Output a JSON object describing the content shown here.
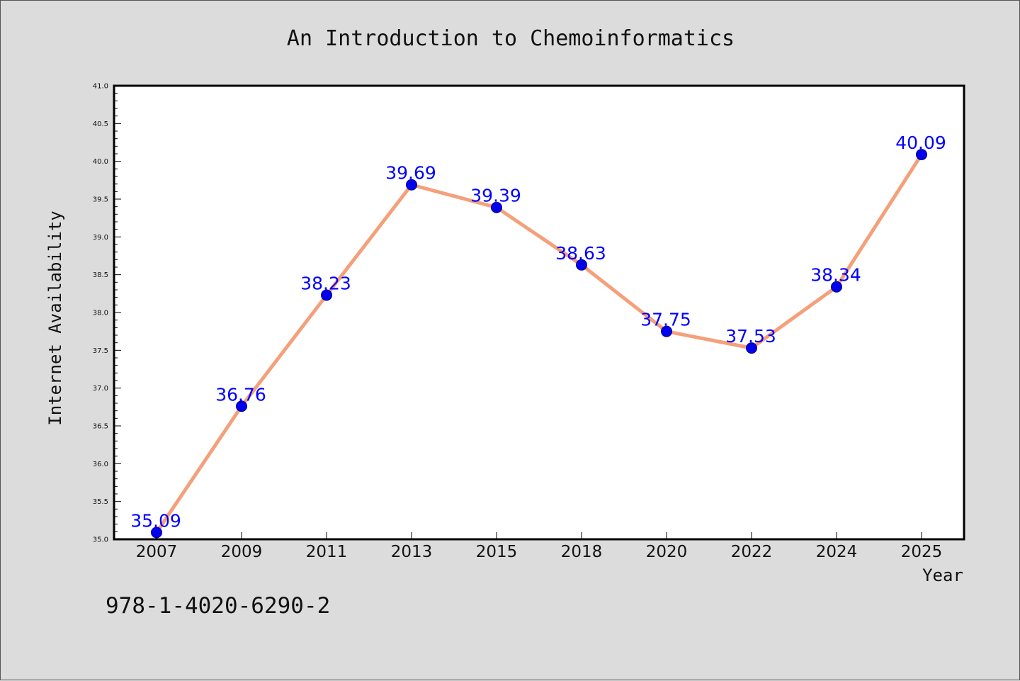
{
  "chart_data": {
    "type": "line",
    "title": "An Introduction to Chemoinformatics",
    "xlabel": "Year",
    "ylabel": "Internet Availability",
    "categories": [
      "2007",
      "2009",
      "2011",
      "2013",
      "2015",
      "2018",
      "2020",
      "2022",
      "2024",
      "2025"
    ],
    "series": [
      {
        "values": [
          35.09,
          36.76,
          38.23,
          39.69,
          39.39,
          38.63,
          37.75,
          37.53,
          38.34,
          40.09
        ],
        "labels": [
          "35.09",
          "36.76",
          "38.23",
          "39.69",
          "39.39",
          "38.63",
          "37.75",
          "37.53",
          "38.34",
          "40.09"
        ],
        "line_color": "#f4a07a",
        "marker_color": "#0000ee",
        "label_color": "#0000ff"
      }
    ],
    "ylim": [
      35.0,
      41.0
    ],
    "yticks": [
      "35.0",
      "35.5",
      "36.0",
      "36.5",
      "37.0",
      "37.5",
      "38.0",
      "38.5",
      "39.0",
      "39.5",
      "40.0",
      "40.5",
      "41.0"
    ],
    "grid": false,
    "legend": "none"
  },
  "footer_text": "978-1-4020-6290-2",
  "colors": {
    "background": "#dcdcdc",
    "plot_area": "#ffffff"
  }
}
